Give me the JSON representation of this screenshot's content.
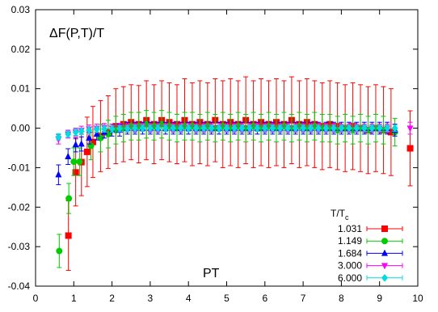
{
  "chart_data": {
    "type": "scatter",
    "annotations": {
      "title": "ΔF(P,T)/T",
      "inner_label": "PT",
      "legend_title": "T/T",
      "legend_title_sub": "c"
    },
    "xlabel": "",
    "ylabel": "",
    "xlim": [
      0,
      10
    ],
    "ylim": [
      -0.04,
      0.03
    ],
    "x_ticks": [
      0,
      1,
      2,
      3,
      4,
      5,
      6,
      7,
      8,
      9,
      10
    ],
    "x_tick_labels": [
      "0",
      "1",
      "2",
      "3",
      "4",
      "5",
      "6",
      "7",
      "8",
      "9",
      "10"
    ],
    "y_ticks": [
      -0.04,
      -0.03,
      -0.02,
      -0.01,
      0.0,
      0.01,
      0.02,
      0.03
    ],
    "y_tick_labels": [
      "-0.04",
      "-0.03",
      "-0.02",
      "-0.01",
      "0.00",
      "0.01",
      "0.02",
      "0.03"
    ],
    "grid": false,
    "legend_position": "bottom-right",
    "series": [
      {
        "name": "1.031",
        "color": "#ff0000",
        "marker": "square",
        "points": [
          [
            0.86,
            -0.0272,
            0.0088
          ],
          [
            1.05,
            -0.0112,
            0.0085
          ],
          [
            1.2,
            -0.0086,
            0.0085
          ],
          [
            1.35,
            -0.006,
            0.0088
          ],
          [
            1.5,
            -0.0035,
            0.009
          ],
          [
            1.7,
            -0.002,
            0.009
          ],
          [
            1.9,
            -0.001,
            0.0092
          ],
          [
            2.1,
            0.0005,
            0.0095
          ],
          [
            2.3,
            0.001,
            0.0095
          ],
          [
            2.5,
            0.0015,
            0.0095
          ],
          [
            2.7,
            0.001,
            0.0098
          ],
          [
            2.9,
            0.002,
            0.01
          ],
          [
            3.1,
            0.001,
            0.01
          ],
          [
            3.3,
            0.002,
            0.01
          ],
          [
            3.5,
            0.0015,
            0.01
          ],
          [
            3.7,
            0.001,
            0.01
          ],
          [
            3.9,
            0.002,
            0.0105
          ],
          [
            4.1,
            0.001,
            0.0105
          ],
          [
            4.3,
            0.0015,
            0.0105
          ],
          [
            4.5,
            0.001,
            0.0105
          ],
          [
            4.7,
            0.002,
            0.0105
          ],
          [
            4.9,
            0.001,
            0.011
          ],
          [
            5.1,
            0.0015,
            0.011
          ],
          [
            5.3,
            0.001,
            0.011
          ],
          [
            5.5,
            0.002,
            0.011
          ],
          [
            5.7,
            0.001,
            0.011
          ],
          [
            5.9,
            0.0015,
            0.011
          ],
          [
            6.1,
            0.001,
            0.011
          ],
          [
            6.3,
            0.0015,
            0.011
          ],
          [
            6.5,
            0.001,
            0.011
          ],
          [
            6.7,
            0.002,
            0.011
          ],
          [
            6.9,
            0.001,
            0.011
          ],
          [
            7.1,
            0.0015,
            0.011
          ],
          [
            7.3,
            0.001,
            0.011
          ],
          [
            7.5,
            0.0005,
            0.011
          ],
          [
            7.7,
            0.001,
            0.011
          ],
          [
            7.9,
            0.0005,
            0.011
          ],
          [
            8.1,
            0.0,
            0.011
          ],
          [
            8.3,
            0.0005,
            0.011
          ],
          [
            8.5,
            0.0,
            0.011
          ],
          [
            8.7,
            -0.0005,
            0.011
          ],
          [
            8.9,
            0.0,
            0.011
          ],
          [
            9.1,
            -0.0005,
            0.011
          ],
          [
            9.3,
            -0.001,
            0.011
          ],
          [
            9.8,
            -0.0051,
            0.0095
          ]
        ]
      },
      {
        "name": "1.149",
        "color": "#00cc00",
        "marker": "circle",
        "points": [
          [
            0.62,
            -0.0311,
            0.0042
          ],
          [
            0.87,
            -0.0178,
            0.0038
          ],
          [
            1.0,
            -0.0085,
            0.0035
          ],
          [
            1.15,
            -0.0085,
            0.0035
          ],
          [
            1.45,
            -0.0045,
            0.0035
          ],
          [
            1.7,
            -0.0025,
            0.0035
          ],
          [
            1.9,
            -0.0015,
            0.0035
          ],
          [
            2.1,
            -0.0005,
            0.0035
          ],
          [
            2.3,
            0.0,
            0.0035
          ],
          [
            2.5,
            0.0005,
            0.0035
          ],
          [
            2.7,
            0.0005,
            0.0035
          ],
          [
            2.9,
            0.001,
            0.0035
          ],
          [
            3.1,
            0.0005,
            0.0035
          ],
          [
            3.3,
            0.001,
            0.0035
          ],
          [
            3.5,
            0.0005,
            0.0035
          ],
          [
            3.7,
            0.0,
            0.0035
          ],
          [
            3.9,
            0.0005,
            0.0035
          ],
          [
            4.1,
            0.0005,
            0.0035
          ],
          [
            4.3,
            0.0,
            0.0035
          ],
          [
            4.5,
            0.0005,
            0.0035
          ],
          [
            4.7,
            0.0,
            0.0035
          ],
          [
            4.9,
            0.0005,
            0.0035
          ],
          [
            5.1,
            0.0,
            0.0035
          ],
          [
            5.3,
            0.0005,
            0.0035
          ],
          [
            5.5,
            0.0,
            0.0035
          ],
          [
            5.7,
            0.0005,
            0.0035
          ],
          [
            5.9,
            0.0,
            0.0035
          ],
          [
            6.1,
            0.0005,
            0.0035
          ],
          [
            6.3,
            0.0,
            0.0035
          ],
          [
            6.5,
            0.0005,
            0.0035
          ],
          [
            6.7,
            0.0,
            0.0035
          ],
          [
            6.9,
            0.0005,
            0.0035
          ],
          [
            7.1,
            0.0,
            0.0035
          ],
          [
            7.3,
            0.0005,
            0.0035
          ],
          [
            7.5,
            0.0,
            0.0035
          ],
          [
            7.7,
            0.0,
            0.0035
          ],
          [
            7.9,
            -0.0005,
            0.0035
          ],
          [
            8.1,
            0.0,
            0.0035
          ],
          [
            8.3,
            -0.0005,
            0.0035
          ],
          [
            8.5,
            0.0,
            0.0035
          ],
          [
            8.7,
            -0.0005,
            0.0035
          ],
          [
            8.9,
            0.0,
            0.0035
          ],
          [
            9.1,
            -0.0005,
            0.0035
          ],
          [
            9.4,
            -0.001,
            0.0035
          ]
        ]
      },
      {
        "name": "1.684",
        "color": "#0000ff",
        "marker": "triangle-up",
        "points": [
          [
            0.6,
            -0.0118,
            0.0025
          ],
          [
            0.85,
            -0.0072,
            0.002
          ],
          [
            1.05,
            -0.0042,
            0.0018
          ],
          [
            1.2,
            -0.004,
            0.0018
          ],
          [
            1.4,
            -0.0025,
            0.0015
          ],
          [
            1.6,
            -0.0015,
            0.0015
          ],
          [
            1.8,
            -0.001,
            0.0015
          ],
          [
            2.0,
            -0.0005,
            0.0015
          ],
          [
            2.2,
            -0.0005,
            0.0015
          ],
          [
            2.4,
            0.0,
            0.0015
          ],
          [
            2.6,
            0.0,
            0.0015
          ],
          [
            2.8,
            0.0,
            0.0015
          ],
          [
            3.0,
            0.0,
            0.0015
          ],
          [
            3.2,
            0.0,
            0.0015
          ],
          [
            3.4,
            0.0,
            0.0015
          ],
          [
            3.6,
            0.0,
            0.0015
          ],
          [
            3.8,
            0.0,
            0.0015
          ],
          [
            4.0,
            0.0,
            0.0015
          ],
          [
            4.2,
            0.0,
            0.0015
          ],
          [
            4.4,
            0.0,
            0.0015
          ],
          [
            4.6,
            0.0,
            0.0015
          ],
          [
            4.8,
            0.0,
            0.0015
          ],
          [
            5.0,
            0.0,
            0.0015
          ],
          [
            5.2,
            0.0,
            0.0015
          ],
          [
            5.4,
            0.0,
            0.0015
          ],
          [
            5.6,
            0.0,
            0.0015
          ],
          [
            5.8,
            0.0,
            0.0015
          ],
          [
            6.0,
            0.0,
            0.0015
          ],
          [
            6.2,
            0.0,
            0.0015
          ],
          [
            6.4,
            0.0,
            0.0015
          ],
          [
            6.6,
            0.0,
            0.0015
          ],
          [
            6.8,
            0.0,
            0.0015
          ],
          [
            7.0,
            0.0,
            0.0015
          ],
          [
            7.2,
            0.0,
            0.0015
          ],
          [
            7.4,
            0.0,
            0.0015
          ],
          [
            7.6,
            0.0,
            0.0015
          ],
          [
            7.8,
            0.0,
            0.0015
          ],
          [
            8.0,
            0.0,
            0.0015
          ],
          [
            8.2,
            0.0,
            0.0015
          ],
          [
            8.4,
            0.0,
            0.0015
          ],
          [
            8.6,
            0.0,
            0.0015
          ],
          [
            8.8,
            0.0,
            0.0015
          ],
          [
            9.0,
            0.0,
            0.0015
          ],
          [
            9.2,
            0.0,
            0.0015
          ],
          [
            9.4,
            -0.0005,
            0.0015
          ]
        ]
      },
      {
        "name": "3.000",
        "color": "#ff00ff",
        "marker": "triangle-down",
        "points": [
          [
            0.6,
            -0.0028,
            0.0012
          ],
          [
            0.85,
            -0.0015,
            0.001
          ],
          [
            1.05,
            -0.001,
            0.001
          ],
          [
            1.2,
            -0.0005,
            0.001
          ],
          [
            1.4,
            -0.0002,
            0.001
          ],
          [
            1.6,
            0.0,
            0.001
          ],
          [
            1.8,
            0.0002,
            0.001
          ],
          [
            2.0,
            0.0,
            0.001
          ],
          [
            2.2,
            0.0002,
            0.001
          ],
          [
            2.4,
            0.0,
            0.001
          ],
          [
            2.6,
            0.0,
            0.001
          ],
          [
            2.8,
            0.0002,
            0.001
          ],
          [
            3.0,
            0.0,
            0.001
          ],
          [
            3.2,
            0.0,
            0.001
          ],
          [
            3.4,
            0.0002,
            0.001
          ],
          [
            3.6,
            0.0,
            0.001
          ],
          [
            3.8,
            0.0,
            0.001
          ],
          [
            4.0,
            0.0002,
            0.001
          ],
          [
            4.2,
            0.0,
            0.001
          ],
          [
            4.4,
            0.0,
            0.001
          ],
          [
            4.6,
            0.0,
            0.001
          ],
          [
            4.8,
            0.0002,
            0.001
          ],
          [
            5.0,
            0.0,
            0.001
          ],
          [
            5.2,
            0.0,
            0.001
          ],
          [
            5.4,
            0.0,
            0.001
          ],
          [
            5.6,
            0.0,
            0.001
          ],
          [
            5.8,
            0.0002,
            0.001
          ],
          [
            6.0,
            0.0,
            0.001
          ],
          [
            6.2,
            0.0,
            0.001
          ],
          [
            6.4,
            0.0,
            0.001
          ],
          [
            6.6,
            0.0,
            0.001
          ],
          [
            6.8,
            0.0,
            0.001
          ],
          [
            7.0,
            0.0,
            0.001
          ],
          [
            7.2,
            0.0,
            0.001
          ],
          [
            7.4,
            0.0,
            0.001
          ],
          [
            7.6,
            0.0,
            0.001
          ],
          [
            7.8,
            0.0,
            0.001
          ],
          [
            8.0,
            0.0,
            0.001
          ],
          [
            8.2,
            0.0,
            0.001
          ],
          [
            8.4,
            0.0,
            0.001
          ],
          [
            8.6,
            0.0,
            0.001
          ],
          [
            8.8,
            0.0,
            0.001
          ],
          [
            9.0,
            0.0,
            0.001
          ],
          [
            9.2,
            0.0,
            0.001
          ],
          [
            9.8,
            0.0,
            0.0015
          ]
        ]
      },
      {
        "name": "6.000",
        "color": "#00dddd",
        "marker": "diamond",
        "points": [
          [
            0.6,
            -0.0022,
            0.0008
          ],
          [
            0.85,
            -0.0015,
            0.0008
          ],
          [
            1.05,
            -0.001,
            0.0008
          ],
          [
            1.2,
            -0.0008,
            0.0008
          ],
          [
            1.4,
            -0.0005,
            0.0008
          ],
          [
            1.6,
            -0.0003,
            0.0008
          ],
          [
            1.8,
            -0.0002,
            0.0008
          ],
          [
            2.0,
            -0.0002,
            0.0008
          ],
          [
            2.2,
            -0.0001,
            0.0008
          ],
          [
            2.4,
            -0.0001,
            0.0008
          ],
          [
            2.6,
            0.0,
            0.0008
          ],
          [
            2.8,
            0.0,
            0.0008
          ],
          [
            3.0,
            0.0,
            0.0008
          ],
          [
            3.2,
            0.0,
            0.0008
          ],
          [
            3.4,
            0.0,
            0.0008
          ],
          [
            3.6,
            0.0,
            0.0008
          ],
          [
            3.8,
            0.0,
            0.0008
          ],
          [
            4.0,
            0.0,
            0.0008
          ],
          [
            4.2,
            0.0,
            0.0008
          ],
          [
            4.4,
            0.0,
            0.0008
          ],
          [
            4.6,
            0.0,
            0.0008
          ],
          [
            4.8,
            0.0,
            0.0008
          ],
          [
            5.0,
            0.0,
            0.0008
          ],
          [
            5.2,
            0.0,
            0.0008
          ],
          [
            5.4,
            0.0,
            0.0008
          ],
          [
            5.6,
            0.0,
            0.0008
          ],
          [
            5.8,
            0.0,
            0.0008
          ],
          [
            6.0,
            0.0,
            0.0008
          ],
          [
            6.2,
            0.0,
            0.0008
          ],
          [
            6.4,
            0.0,
            0.0008
          ],
          [
            6.6,
            0.0,
            0.0008
          ],
          [
            6.8,
            0.0,
            0.0008
          ],
          [
            7.0,
            0.0,
            0.0008
          ],
          [
            7.2,
            0.0,
            0.0008
          ],
          [
            7.4,
            0.0,
            0.0008
          ],
          [
            7.6,
            0.0,
            0.0008
          ],
          [
            7.8,
            0.0,
            0.0008
          ],
          [
            8.0,
            0.0,
            0.0008
          ],
          [
            8.2,
            0.0,
            0.0008
          ],
          [
            8.4,
            0.0,
            0.0008
          ],
          [
            8.6,
            0.0,
            0.0008
          ],
          [
            8.8,
            0.0,
            0.0008
          ],
          [
            9.0,
            0.0,
            0.0008
          ],
          [
            9.2,
            0.0,
            0.0008
          ],
          [
            9.4,
            0.0,
            0.0008
          ]
        ]
      }
    ]
  }
}
